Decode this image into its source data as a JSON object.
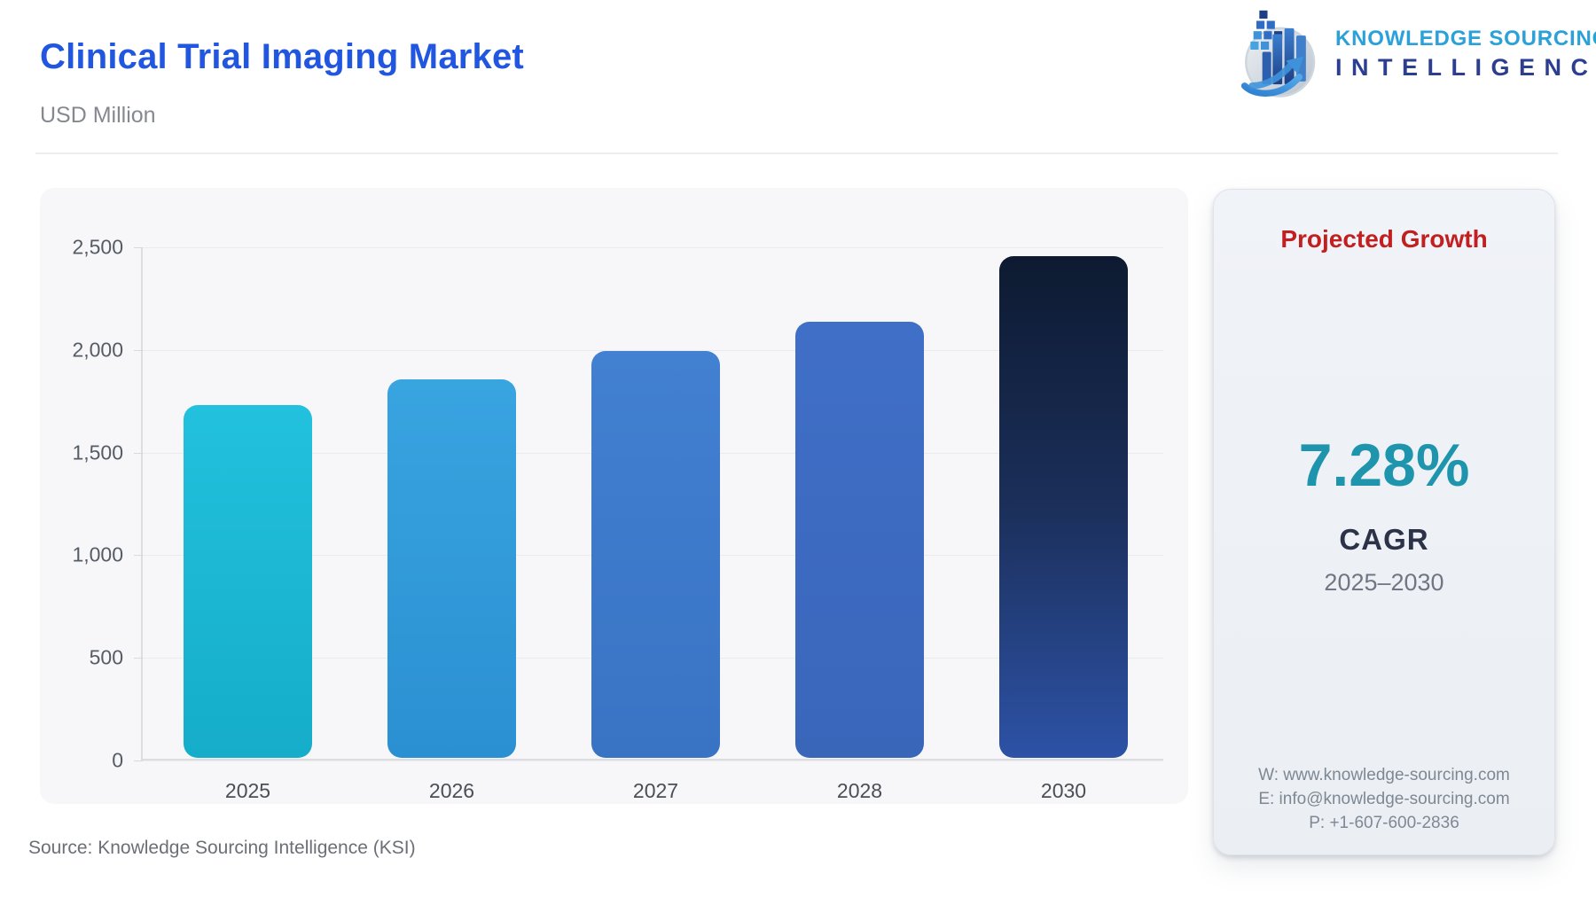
{
  "header": {
    "title": "Clinical Trial Imaging Market",
    "subtitle": "USD Million",
    "logo": {
      "line1": "KNOWLEDGE SOURCING",
      "line2": "INTELLIGENCE"
    }
  },
  "chart_data": {
    "type": "bar",
    "title": "Clinical Trial Imaging Market",
    "ylabel": "USD Million",
    "xlabel": "",
    "categories": [
      "2025",
      "2026",
      "2027",
      "2028",
      "2030"
    ],
    "values": [
      1720,
      1845,
      1980,
      2125,
      2445
    ],
    "ylim": [
      0,
      2500
    ],
    "yticks": [
      "2,500",
      "2,000",
      "1,500",
      "1,000",
      "500",
      "0"
    ],
    "ytick_values": [
      2500,
      2000,
      1500,
      1000,
      500,
      0
    ],
    "grid": true,
    "legend": "none",
    "bar_gradients": [
      [
        "#22c1dd",
        "#15adc9"
      ],
      [
        "#38a4e0",
        "#2b90d2"
      ],
      [
        "#4280d1",
        "#3973c4"
      ],
      [
        "#406fc8",
        "#3a66ba"
      ],
      [
        "#0d1a31",
        "#1b2f5a",
        "#2d52a6"
      ]
    ]
  },
  "side_panel": {
    "heading": "Projected Growth",
    "cagr_value": "7.28%",
    "cagr_label": "CAGR",
    "period": "2025–2030",
    "contact": {
      "website": "W: www.knowledge-sourcing.com",
      "email": "E: info@knowledge-sourcing.com",
      "phone": "P: +1-607-600-2836"
    }
  },
  "footer": {
    "source": "Source: Knowledge Sourcing Intelligence (KSI)"
  },
  "colors": {
    "title_blue": "#2156e0",
    "heading_red": "#c22020",
    "cagr_teal": "#1e95ad",
    "logo_cyan": "#2aa1d8",
    "logo_navy": "#2c3e8f",
    "panel_bg": "#f7f7f9"
  }
}
